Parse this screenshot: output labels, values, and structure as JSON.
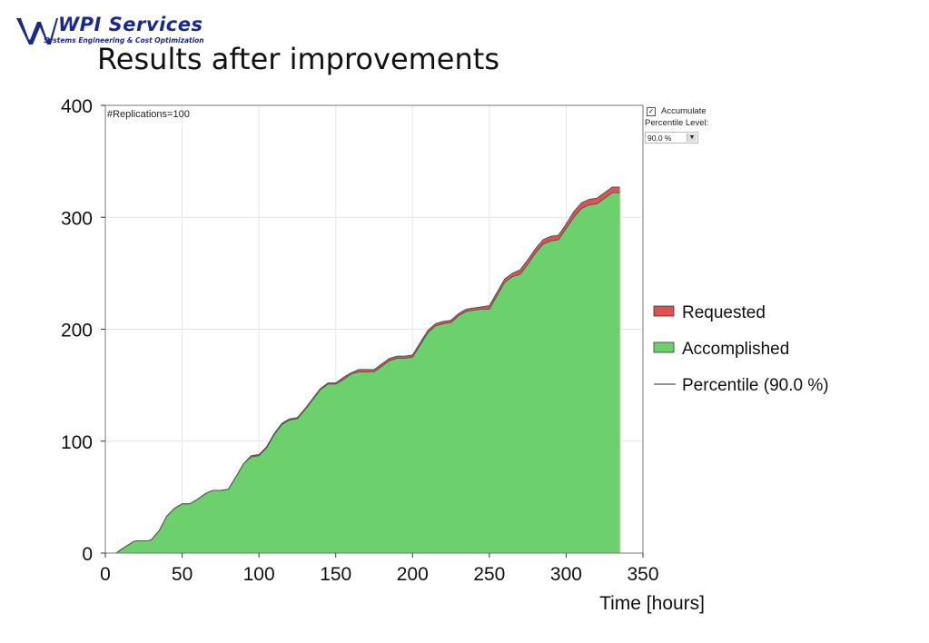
{
  "header": {
    "brand": "WPI Services",
    "tagline": "Systems Engineering & Cost Optimization",
    "title": "Results after improvements"
  },
  "controls": {
    "accumulate_label": "Accumulate",
    "accumulate_checked": true,
    "percentile_label": "Percentile Level:",
    "percentile_value": "90.0 %"
  },
  "colors": {
    "requested": "#e05252",
    "accomplished": "#6cd06c",
    "percentile_line": "#555555",
    "brand": "#1a2a8a"
  },
  "chart_data": {
    "type": "area",
    "annotation": "#Replications=100",
    "xlabel": "Time [hours]",
    "ylabel": "",
    "xlim": [
      0,
      350
    ],
    "ylim": [
      0,
      400
    ],
    "xticks": [
      0,
      50,
      100,
      150,
      200,
      250,
      300,
      350
    ],
    "yticks": [
      0,
      100,
      200,
      300,
      400
    ],
    "grid": true,
    "legend_position": "right",
    "legend": [
      "Requested",
      "Accomplished",
      "Percentile (90.0 %)"
    ],
    "x": [
      0,
      7,
      10,
      18,
      20,
      28,
      30,
      35,
      40,
      45,
      50,
      55,
      60,
      65,
      70,
      75,
      80,
      85,
      90,
      95,
      100,
      105,
      110,
      115,
      120,
      125,
      130,
      135,
      140,
      145,
      150,
      155,
      160,
      165,
      170,
      175,
      180,
      185,
      190,
      195,
      200,
      205,
      210,
      215,
      220,
      225,
      230,
      235,
      240,
      245,
      250,
      255,
      260,
      265,
      270,
      275,
      280,
      285,
      290,
      295,
      300,
      305,
      310,
      315,
      320,
      325,
      330,
      335
    ],
    "series": [
      {
        "name": "Requested",
        "values": [
          0,
          0,
          3,
          10,
          11,
          11,
          12,
          20,
          33,
          40,
          44,
          44,
          48,
          53,
          56,
          56,
          57,
          68,
          80,
          87,
          88,
          95,
          107,
          116,
          120,
          121,
          129,
          138,
          147,
          152,
          152,
          157,
          161,
          164,
          164,
          164,
          169,
          174,
          176,
          176,
          177,
          188,
          199,
          205,
          207,
          208,
          214,
          218,
          219,
          220,
          221,
          233,
          245,
          250,
          253,
          262,
          272,
          280,
          283,
          284,
          294,
          305,
          313,
          316,
          317,
          322,
          327,
          327
        ]
      },
      {
        "name": "Accomplished",
        "values": [
          0,
          0,
          3,
          10,
          11,
          11,
          12,
          20,
          33,
          40,
          44,
          44,
          48,
          53,
          56,
          56,
          57,
          68,
          80,
          86,
          87,
          94,
          106,
          115,
          119,
          120,
          128,
          137,
          146,
          151,
          151,
          155,
          160,
          162,
          162,
          162,
          167,
          172,
          174,
          174,
          175,
          186,
          197,
          203,
          205,
          206,
          212,
          216,
          217,
          218,
          218,
          230,
          242,
          247,
          249,
          258,
          268,
          276,
          279,
          280,
          290,
          300,
          308,
          311,
          312,
          317,
          322,
          322
        ]
      }
    ]
  }
}
